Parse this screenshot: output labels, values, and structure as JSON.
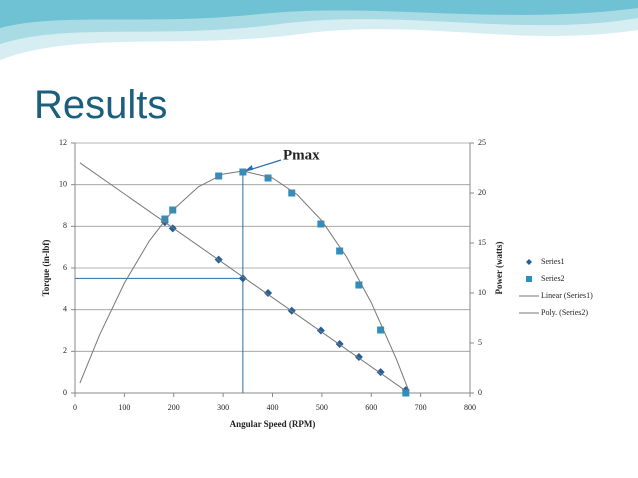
{
  "title": "Results",
  "chart_data": {
    "type": "scatter",
    "xlabel": "Angular Speed (RPM)",
    "ylabel": "Torque (in-lbf)",
    "y2label": "Power (watts)",
    "xlim": [
      0,
      800
    ],
    "xticks": [
      0,
      100,
      200,
      300,
      400,
      500,
      600,
      700,
      800
    ],
    "ylim": [
      0,
      12
    ],
    "yticks": [
      0,
      2,
      4,
      6,
      8,
      10,
      12
    ],
    "y2lim": [
      0,
      25
    ],
    "y2ticks": [
      0,
      5,
      10,
      15,
      20,
      25
    ],
    "grid": true,
    "annotation": "Pmax",
    "series": [
      {
        "name": "Series1",
        "color": "#1f5f9c",
        "marker": "diamond",
        "x": [
          182,
          198,
          291,
          340,
          391,
          439,
          498,
          536,
          575,
          619,
          670
        ],
        "values": [
          8.2,
          7.9,
          6.4,
          5.5,
          4.8,
          3.95,
          3.0,
          2.35,
          1.73,
          1.0,
          0.14
        ]
      },
      {
        "name": "Series2",
        "color": "#2b8fc2",
        "marker": "square",
        "axis": "y2",
        "x": [
          182,
          198,
          291,
          340,
          391,
          439,
          498,
          536,
          575,
          619,
          670
        ],
        "values": [
          17.4,
          18.3,
          21.7,
          22.1,
          21.5,
          20.0,
          16.9,
          14.2,
          10.8,
          6.3,
          0
        ]
      },
      {
        "name": "Linear (Series1)",
        "color": "#777777",
        "marker": "line",
        "x": [
          10,
          670
        ],
        "values": [
          11.05,
          0.1
        ]
      },
      {
        "name": "Poly. (Series2)",
        "color": "#777777",
        "marker": "line",
        "axis": "y2",
        "x": [
          10,
          50,
          100,
          150,
          200,
          250,
          300,
          340,
          400,
          450,
          500,
          550,
          600,
          650,
          675
        ],
        "values": [
          1.0,
          5.83,
          10.99,
          15.17,
          18.38,
          20.62,
          21.89,
          22.2,
          21.5,
          19.84,
          17.22,
          13.61,
          9.04,
          3.49,
          0.35
        ]
      }
    ]
  }
}
